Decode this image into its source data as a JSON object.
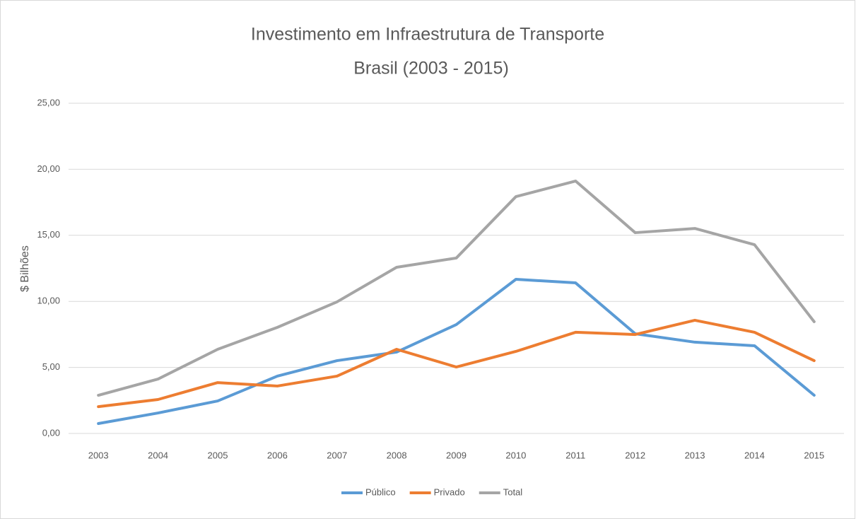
{
  "chart_data": {
    "type": "line",
    "title": "Investimento em Infraestrutura de Transporte",
    "subtitle": "Brasil (2003 - 2015)",
    "y_label": "$ Bilhões",
    "categories": [
      "2003",
      "2004",
      "2005",
      "2006",
      "2007",
      "2008",
      "2009",
      "2010",
      "2011",
      "2012",
      "2013",
      "2014",
      "2015"
    ],
    "series": [
      {
        "name": "Público",
        "color": "#5b9bd5",
        "values": [
          0.75,
          1.55,
          2.46,
          4.34,
          5.51,
          6.16,
          8.24,
          11.67,
          11.4,
          7.55,
          6.91,
          6.64,
          2.89
        ]
      },
      {
        "name": "Privado",
        "color": "#ed7d31",
        "values": [
          2.03,
          2.57,
          3.85,
          3.59,
          4.34,
          6.37,
          5.03,
          6.21,
          7.66,
          7.49,
          8.57,
          7.66,
          5.51
        ]
      },
      {
        "name": "Total",
        "color": "#a5a5a5",
        "values": [
          2.89,
          4.12,
          6.37,
          8.03,
          9.96,
          12.58,
          13.28,
          17.93,
          19.11,
          15.2,
          15.52,
          14.29,
          8.46
        ]
      }
    ],
    "ylim": [
      0,
      25
    ],
    "yticks": [
      {
        "value": 0,
        "label": "0,00"
      },
      {
        "value": 5,
        "label": "5,00"
      },
      {
        "value": 10,
        "label": "10,00"
      },
      {
        "value": 15,
        "label": "15,00"
      },
      {
        "value": 20,
        "label": "20,00"
      },
      {
        "value": 25,
        "label": "25,00"
      }
    ],
    "grid": true,
    "legend": "bottom"
  }
}
